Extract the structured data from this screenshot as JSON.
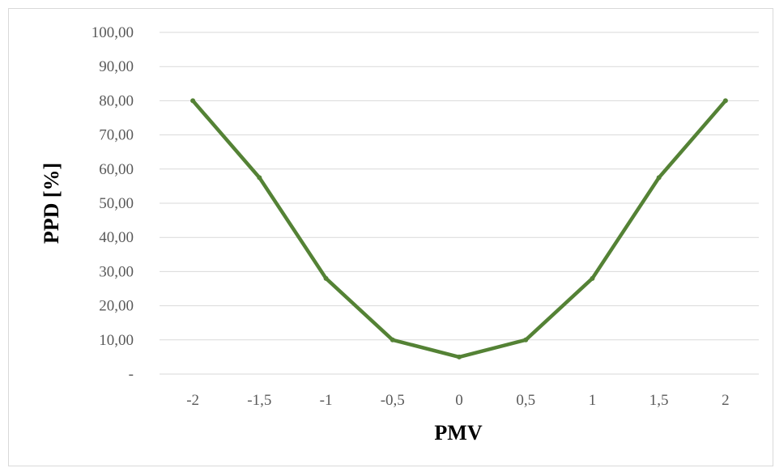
{
  "chart_data": {
    "type": "line",
    "title": "",
    "xlabel": "PMV",
    "ylabel": "PPD [%]",
    "categories": [
      "-2",
      "-1,5",
      "-1",
      "-0,5",
      "0",
      "0,5",
      "1",
      "1,5",
      "2"
    ],
    "x": [
      -2,
      -1.5,
      -1,
      -0.5,
      0,
      0.5,
      1,
      1.5,
      2
    ],
    "series": [
      {
        "values": [
          80,
          57.5,
          28,
          10,
          5,
          10,
          28,
          57.5,
          80
        ],
        "color": "#548235"
      }
    ],
    "ylim": [
      0,
      100
    ],
    "yticks": [
      0,
      10,
      20,
      30,
      40,
      50,
      60,
      70,
      80,
      90,
      100
    ],
    "ytick_labels": [
      "-",
      "10,00",
      "20,00",
      "30,00",
      "40,00",
      "50,00",
      "60,00",
      "70,00",
      "80,00",
      "90,00",
      "100,00"
    ],
    "grid": true,
    "legend": "none",
    "gridline_color": "#d9d9d9"
  }
}
